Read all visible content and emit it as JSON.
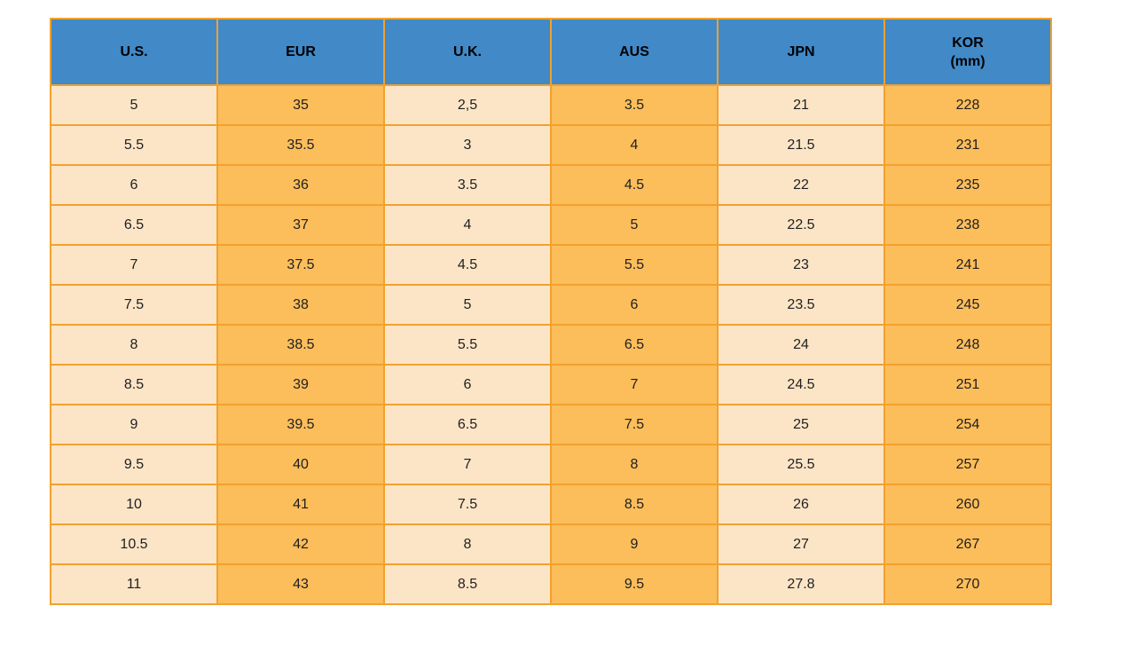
{
  "table": {
    "columns": [
      {
        "key": "us",
        "label": "U.S."
      },
      {
        "key": "eur",
        "label": "EUR"
      },
      {
        "key": "uk",
        "label": "U.K."
      },
      {
        "key": "aus",
        "label": "AUS"
      },
      {
        "key": "jpn",
        "label": "JPN"
      },
      {
        "key": "kor",
        "label": "KOR",
        "sublabel": "(mm)"
      }
    ],
    "rows": [
      [
        "5",
        "35",
        "2,5",
        "3.5",
        "21",
        "228"
      ],
      [
        "5.5",
        "35.5",
        "3",
        "4",
        "21.5",
        "231"
      ],
      [
        "6",
        "36",
        "3.5",
        "4.5",
        "22",
        "235"
      ],
      [
        "6.5",
        "37",
        "4",
        "5",
        "22.5",
        "238"
      ],
      [
        "7",
        "37.5",
        "4.5",
        "5.5",
        "23",
        "241"
      ],
      [
        "7.5",
        "38",
        "5",
        "6",
        "23.5",
        "245"
      ],
      [
        "8",
        "38.5",
        "5.5",
        "6.5",
        "24",
        "248"
      ],
      [
        "8.5",
        "39",
        "6",
        "7",
        "24.5",
        "251"
      ],
      [
        "9",
        "39.5",
        "6.5",
        "7.5",
        "25",
        "254"
      ],
      [
        "9.5",
        "40",
        "7",
        "8",
        "25.5",
        "257"
      ],
      [
        "10",
        "41",
        "7.5",
        "8.5",
        "26",
        "260"
      ],
      [
        "10.5",
        "42",
        "8",
        "9",
        "27",
        "267"
      ],
      [
        "11",
        "43",
        "8.5",
        "9.5",
        "27.8",
        "270"
      ]
    ]
  },
  "colors": {
    "header_bg": "#4189C7",
    "cell_light": "#FCE5C7",
    "cell_orange": "#FCBD5B",
    "border": "#F2A12D",
    "text": "#1f1f1f",
    "header_text": "#000000"
  }
}
